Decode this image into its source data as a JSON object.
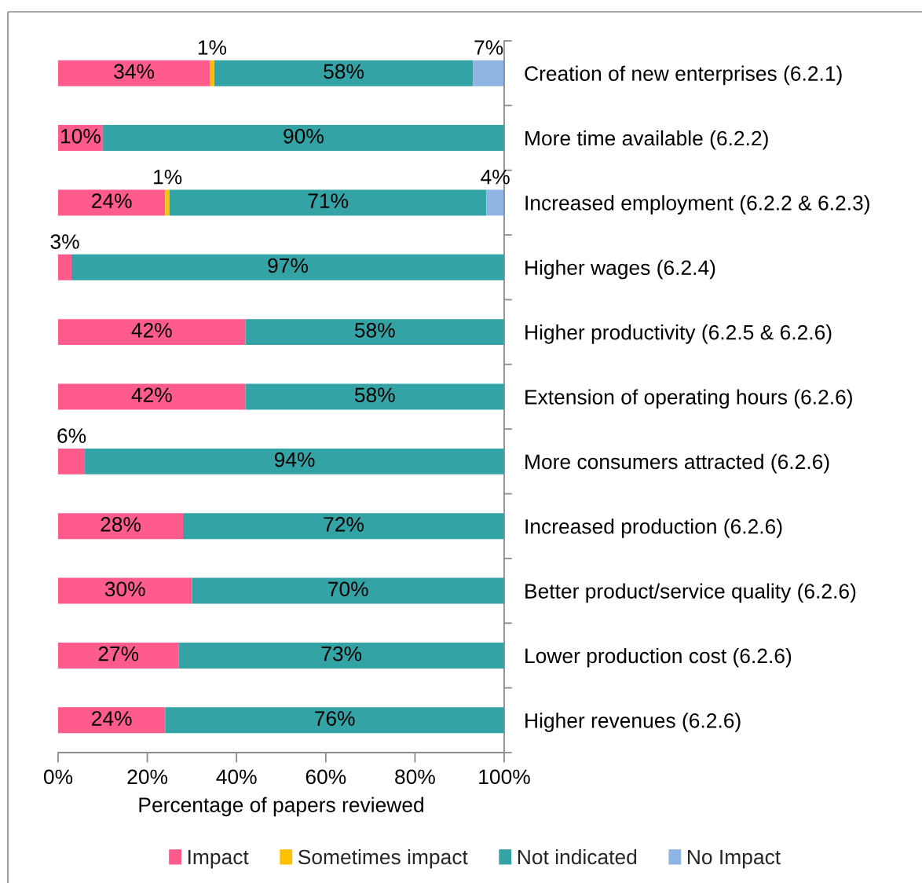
{
  "chart_data": {
    "type": "bar",
    "orientation": "horizontal",
    "stacked": true,
    "categories": [
      "Creation of new enterprises (6.2.1)",
      "More time available (6.2.2)",
      "Increased employment (6.2.2 & 6.2.3)",
      "Higher wages (6.2.4)",
      "Higher productivity (6.2.5 & 6.2.6)",
      "Extension of operating hours (6.2.6)",
      "More consumers attracted (6.2.6)",
      "Increased production (6.2.6)",
      "Better product/service quality (6.2.6)",
      "Lower production cost (6.2.6)",
      "Higher revenues (6.2.6)"
    ],
    "series": [
      {
        "name": "Impact",
        "color": "#ff5c8d",
        "values": [
          34,
          10,
          24,
          3,
          42,
          42,
          6,
          28,
          30,
          27,
          24
        ],
        "value_labels": [
          "34%",
          "10%",
          "24%",
          "3%",
          "42%",
          "42%",
          "6%",
          "28%",
          "30%",
          "27%",
          "24%"
        ]
      },
      {
        "name": "Sometimes impact",
        "color": "#ffc000",
        "values": [
          1,
          null,
          1,
          null,
          null,
          null,
          null,
          null,
          null,
          null,
          null
        ],
        "value_labels": [
          "1%",
          null,
          "1%",
          null,
          null,
          null,
          null,
          null,
          null,
          null,
          null
        ]
      },
      {
        "name": "Not indicated",
        "color": "#33a3a6",
        "values": [
          58,
          90,
          71,
          97,
          58,
          58,
          94,
          72,
          70,
          73,
          76
        ],
        "value_labels": [
          "58%",
          "90%",
          "71%",
          "97%",
          "58%",
          "58%",
          "94%",
          "72%",
          "70%",
          "73%",
          "76%"
        ]
      },
      {
        "name": "No Impact",
        "color": "#8eb4e3",
        "values": [
          7,
          null,
          4,
          null,
          null,
          null,
          null,
          null,
          null,
          null,
          null
        ],
        "value_labels": [
          "7%",
          null,
          "4%",
          null,
          null,
          null,
          null,
          null,
          null,
          null,
          null
        ]
      }
    ],
    "xlim": [
      0,
      100
    ],
    "xticks": [
      {
        "value": 0,
        "label": "0%"
      },
      {
        "value": 20,
        "label": "20%"
      },
      {
        "value": 40,
        "label": "40%"
      },
      {
        "value": 60,
        "label": "60%"
      },
      {
        "value": 80,
        "label": "80%"
      },
      {
        "value": 100,
        "label": "100%"
      }
    ],
    "xlabel": "Percentage of papers reviewed",
    "legend": "bottom"
  }
}
